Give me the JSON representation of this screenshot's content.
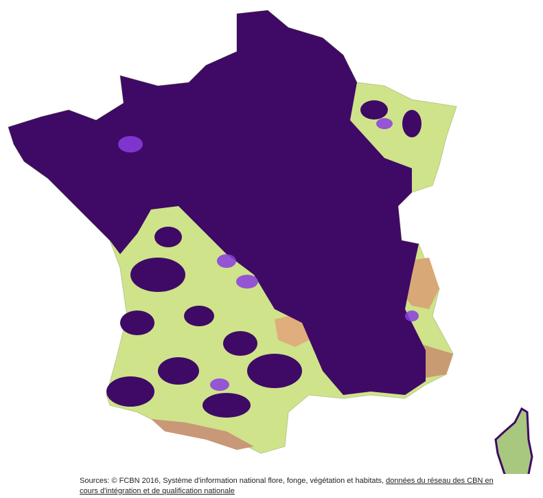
{
  "sources": {
    "prefix": "Sources: © FCBN 2016, Système d'information national flore, fonge, végétation et habitats, ",
    "link": "données du réseau des CBN en cours d'intégration et de qualification nationale"
  }
}
